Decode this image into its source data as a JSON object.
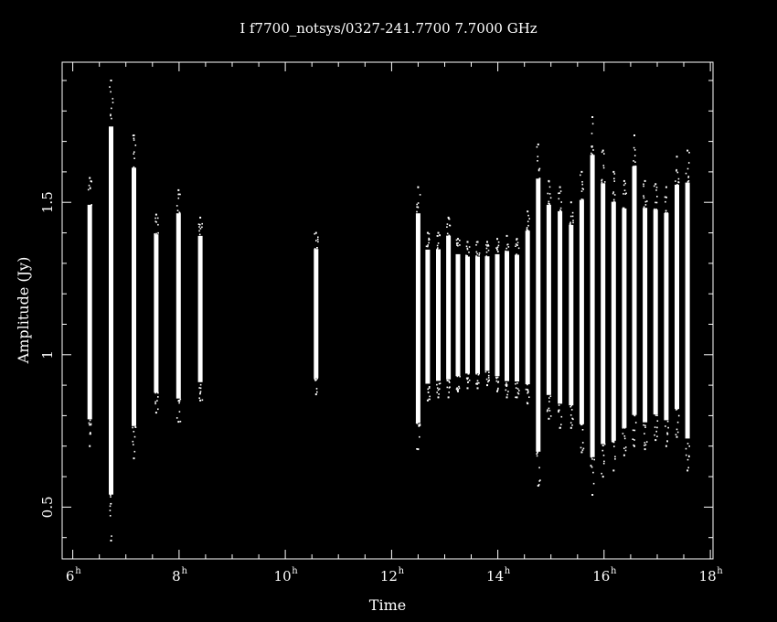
{
  "chart_data": {
    "type": "scatter",
    "title": "I f7700_notsys/0327-241.7700  7.7000 GHz",
    "xlabel": "Time",
    "ylabel": "Amplitude (Jy)",
    "xlim": [
      5.8,
      18.05
    ],
    "ylim": [
      0.33,
      1.96
    ],
    "x_unit_superscript": "h",
    "x_ticks": [
      {
        "value": 6,
        "label": "6"
      },
      {
        "value": 8,
        "label": "8"
      },
      {
        "value": 10,
        "label": "10"
      },
      {
        "value": 12,
        "label": "12"
      },
      {
        "value": 14,
        "label": "14"
      },
      {
        "value": 16,
        "label": "16"
      },
      {
        "value": 18,
        "label": "18"
      }
    ],
    "y_ticks": [
      {
        "value": 0.5,
        "label": "0.5"
      },
      {
        "value": 1,
        "label": "1"
      },
      {
        "value": 1.5,
        "label": "1.5"
      }
    ],
    "colors": {
      "background": "#000000",
      "foreground": "#ffffff"
    },
    "scans": [
      {
        "t": 6.32,
        "min": 0.7,
        "max": 1.58
      },
      {
        "t": 6.72,
        "min": 0.39,
        "max": 1.9
      },
      {
        "t": 7.15,
        "min": 0.66,
        "max": 1.72
      },
      {
        "t": 7.57,
        "min": 0.81,
        "max": 1.46
      },
      {
        "t": 7.99,
        "min": 0.78,
        "max": 1.54
      },
      {
        "t": 8.4,
        "min": 0.85,
        "max": 1.45
      },
      {
        "t": 10.58,
        "min": 0.87,
        "max": 1.4
      },
      {
        "t": 12.5,
        "min": 0.69,
        "max": 1.55
      },
      {
        "t": 12.68,
        "min": 0.85,
        "max": 1.4
      },
      {
        "t": 12.88,
        "min": 0.86,
        "max": 1.4
      },
      {
        "t": 13.07,
        "min": 0.86,
        "max": 1.45
      },
      {
        "t": 13.25,
        "min": 0.88,
        "max": 1.38
      },
      {
        "t": 13.43,
        "min": 0.89,
        "max": 1.37
      },
      {
        "t": 13.62,
        "min": 0.89,
        "max": 1.37
      },
      {
        "t": 13.8,
        "min": 0.9,
        "max": 1.37
      },
      {
        "t": 13.99,
        "min": 0.88,
        "max": 1.38
      },
      {
        "t": 14.17,
        "min": 0.86,
        "max": 1.39
      },
      {
        "t": 14.36,
        "min": 0.86,
        "max": 1.38
      },
      {
        "t": 14.56,
        "min": 0.84,
        "max": 1.47
      },
      {
        "t": 14.76,
        "min": 0.57,
        "max": 1.69
      },
      {
        "t": 14.96,
        "min": 0.79,
        "max": 1.57
      },
      {
        "t": 15.17,
        "min": 0.76,
        "max": 1.55
      },
      {
        "t": 15.38,
        "min": 0.76,
        "max": 1.5
      },
      {
        "t": 15.58,
        "min": 0.68,
        "max": 1.6
      },
      {
        "t": 15.78,
        "min": 0.54,
        "max": 1.78
      },
      {
        "t": 15.98,
        "min": 0.6,
        "max": 1.67
      },
      {
        "t": 16.18,
        "min": 0.62,
        "max": 1.6
      },
      {
        "t": 16.38,
        "min": 0.67,
        "max": 1.57
      },
      {
        "t": 16.57,
        "min": 0.7,
        "max": 1.72
      },
      {
        "t": 16.77,
        "min": 0.69,
        "max": 1.57
      },
      {
        "t": 16.97,
        "min": 0.72,
        "max": 1.56
      },
      {
        "t": 17.17,
        "min": 0.7,
        "max": 1.55
      },
      {
        "t": 17.37,
        "min": 0.73,
        "max": 1.65
      },
      {
        "t": 17.57,
        "min": 0.62,
        "max": 1.67
      }
    ]
  }
}
